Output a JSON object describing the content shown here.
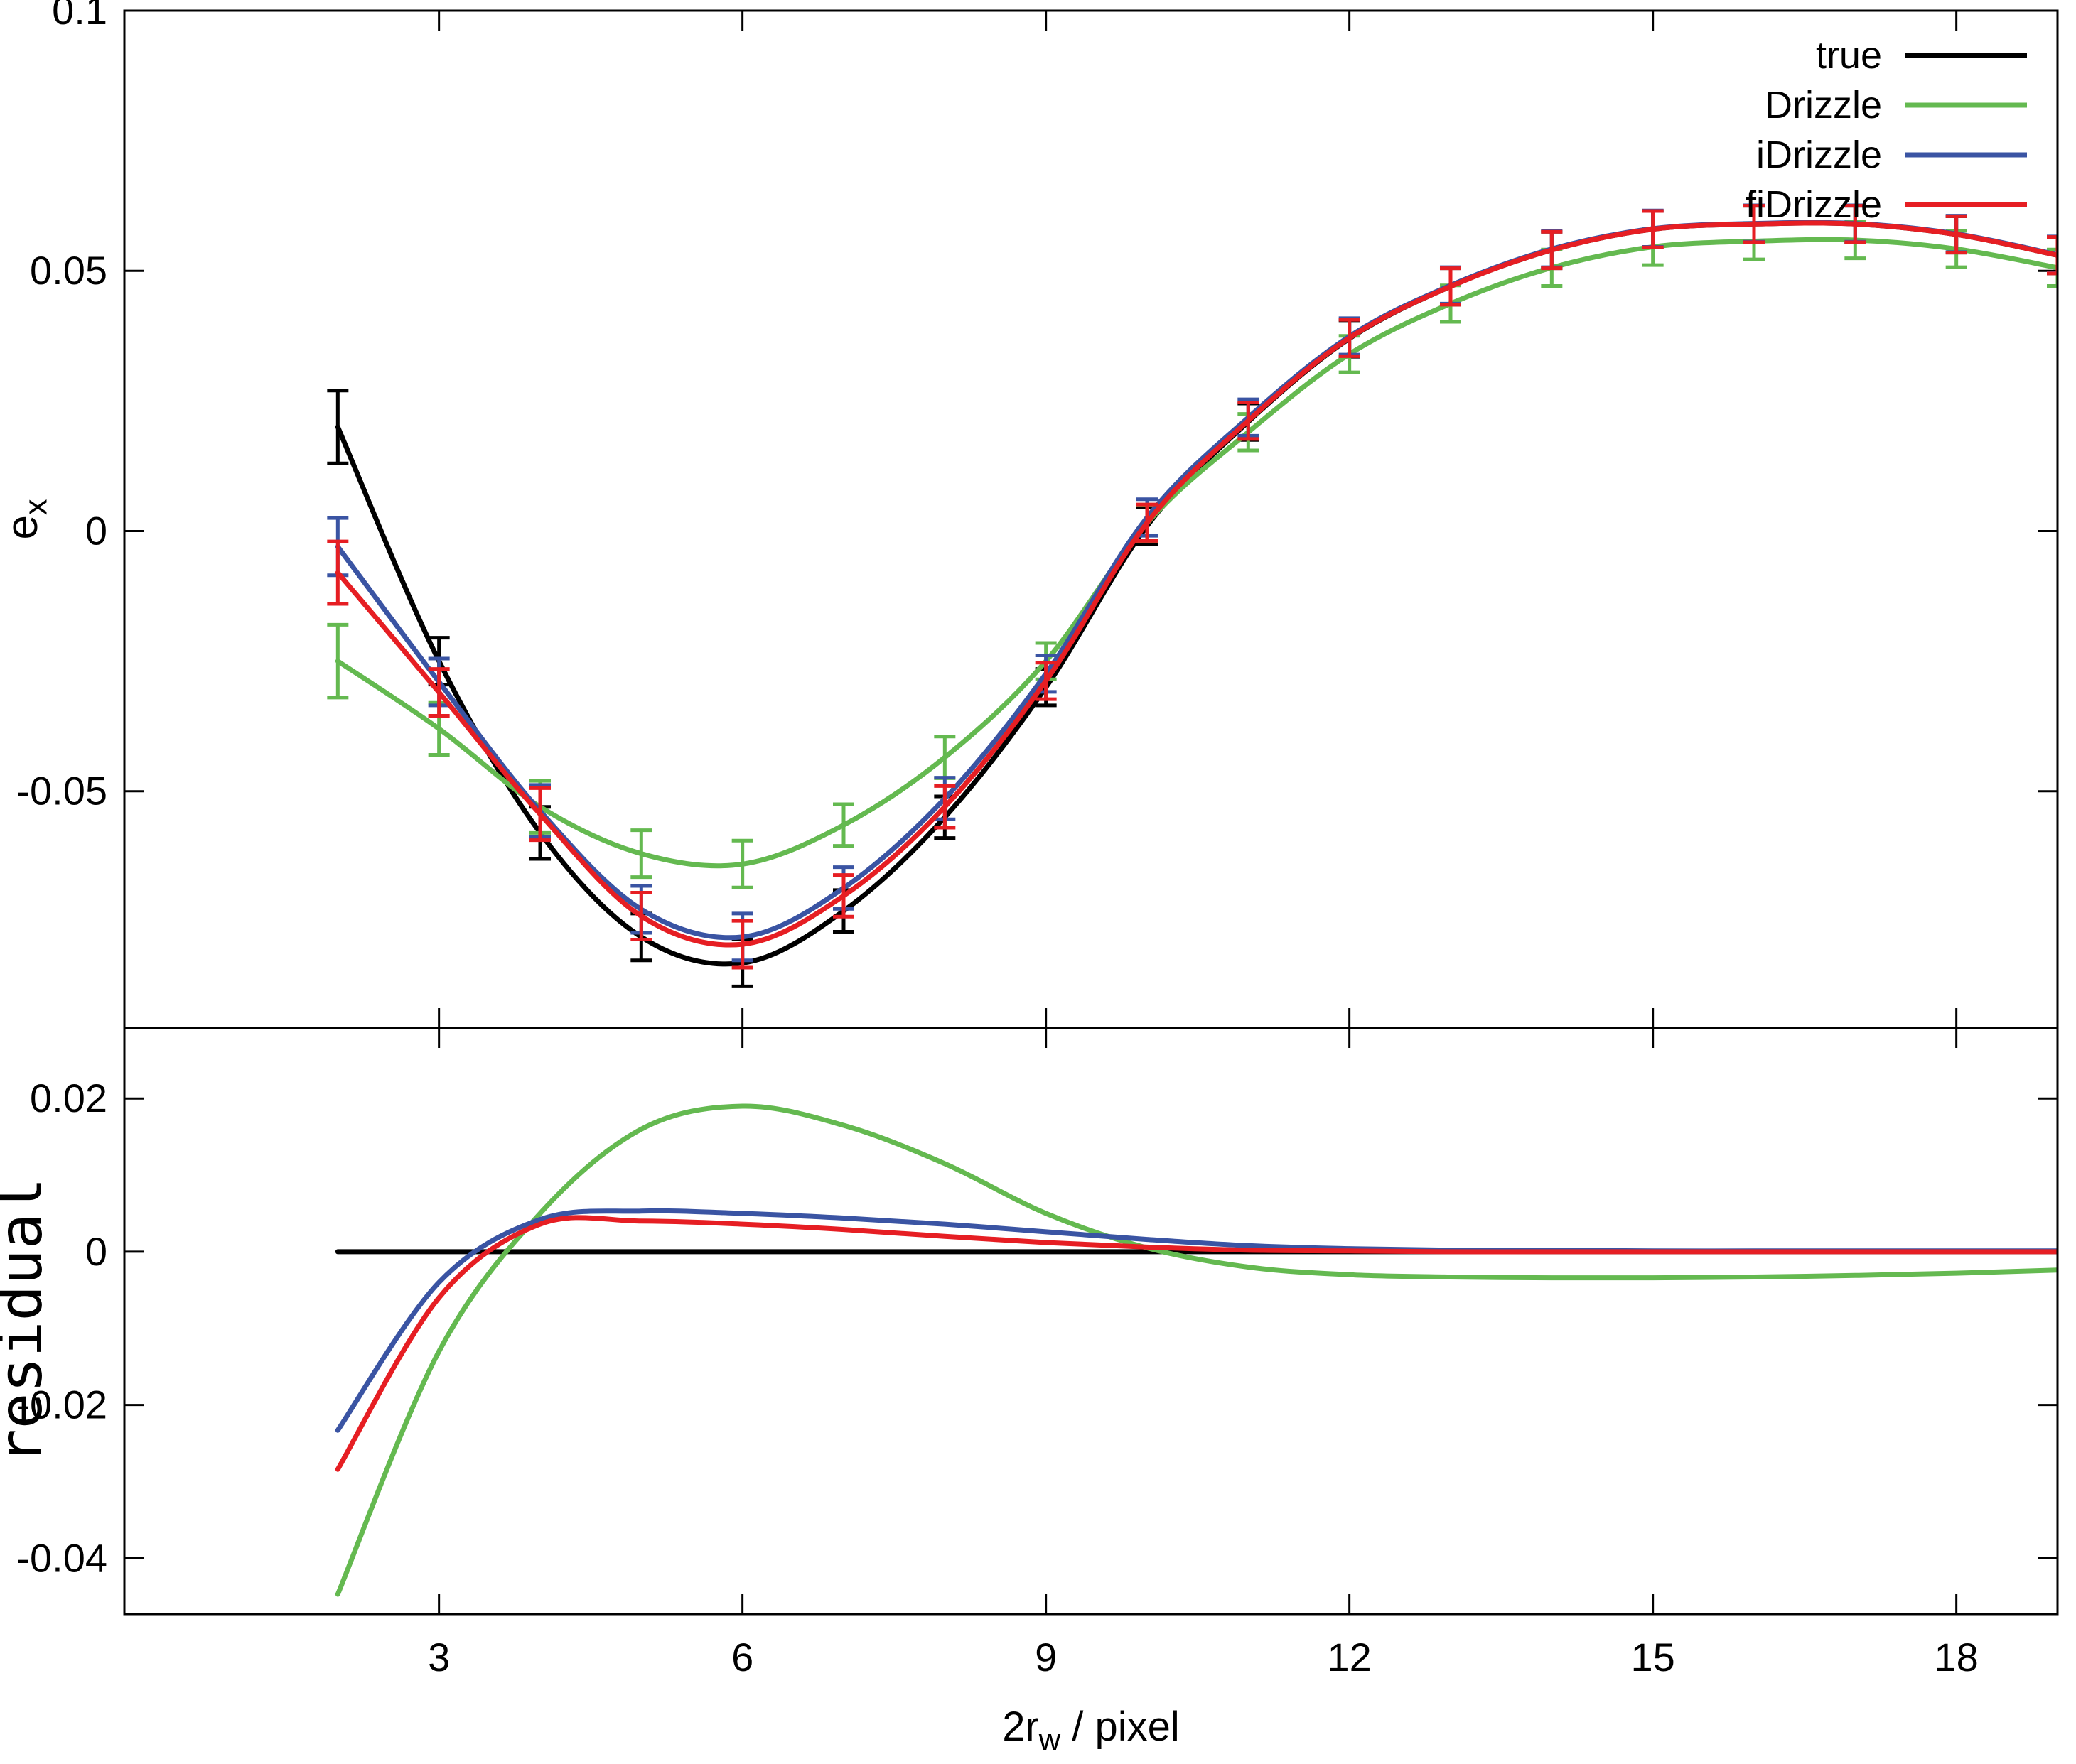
{
  "figure": {
    "background": "#ffffff"
  },
  "chart_data": [
    {
      "type": "line",
      "panel": "top",
      "title": "",
      "ylabel": "e_x",
      "xlim": [
        -0.11,
        19.0
      ],
      "ylim": [
        -0.0955,
        0.1
      ],
      "xticks": [
        3,
        6,
        9,
        12,
        15,
        18
      ],
      "yticks": [
        0.1,
        0.05,
        0,
        -0.05
      ],
      "x_tick_labels_visible": false,
      "grid": false,
      "legend_position": "top-right",
      "x": [
        2,
        3,
        4,
        5,
        6,
        7,
        8,
        9,
        10,
        11,
        12,
        13,
        14,
        15,
        16,
        17,
        18,
        19
      ],
      "series": [
        {
          "name": "true",
          "color": "#000000",
          "values": [
            0.02,
            -0.025,
            -0.058,
            -0.078,
            -0.083,
            -0.073,
            -0.055,
            -0.03,
            0.001,
            0.021,
            0.037,
            0.047,
            0.054,
            0.058,
            0.059,
            0.059,
            0.057,
            0.053
          ],
          "yerr": [
            0.007,
            0.0045,
            0.005,
            0.0045,
            0.0045,
            0.004,
            0.004,
            0.0035,
            0.0035,
            0.0035,
            0.0035,
            0.0035,
            0.0035,
            0.0035,
            0.0035,
            0.0035,
            0.0035,
            0.0035
          ]
        },
        {
          "name": "Drizzle",
          "color": "#64B950",
          "values": [
            -0.025,
            -0.038,
            -0.053,
            -0.062,
            -0.064,
            -0.0565,
            -0.0435,
            -0.025,
            0.0015,
            0.019,
            0.034,
            0.0437,
            0.0506,
            0.0546,
            0.0557,
            0.0559,
            0.0542,
            0.0506
          ],
          "yerr": [
            0.007,
            0.005,
            0.005,
            0.0045,
            0.0045,
            0.004,
            0.004,
            0.0035,
            0.0035,
            0.0035,
            0.0035,
            0.0035,
            0.0035,
            0.0035,
            0.0035,
            0.0035,
            0.0035,
            0.0035
          ]
        },
        {
          "name": "iDrizzle",
          "color": "#3A54A3",
          "values": [
            -0.003,
            -0.029,
            -0.0538,
            -0.0727,
            -0.078,
            -0.0686,
            -0.0514,
            -0.0274,
            0.0026,
            0.0218,
            0.0374,
            0.0472,
            0.0542,
            0.0581,
            0.0591,
            0.0591,
            0.0571,
            0.0531
          ],
          "yerr": [
            0.0055,
            0.0045,
            0.005,
            0.0045,
            0.0045,
            0.004,
            0.004,
            0.0035,
            0.0035,
            0.0035,
            0.0035,
            0.0035,
            0.0035,
            0.0035,
            0.0035,
            0.0035,
            0.0035,
            0.0035
          ]
        },
        {
          "name": "fiDrizzle",
          "color": "#E61E23",
          "values": [
            -0.008,
            -0.031,
            -0.0544,
            -0.074,
            -0.0794,
            -0.0701,
            -0.053,
            -0.0288,
            0.0016,
            0.0212,
            0.0371,
            0.047,
            0.054,
            0.058,
            0.059,
            0.059,
            0.057,
            0.053
          ],
          "yerr": [
            0.006,
            0.0045,
            0.005,
            0.0045,
            0.0045,
            0.004,
            0.004,
            0.0035,
            0.0035,
            0.0035,
            0.0035,
            0.0035,
            0.0035,
            0.0035,
            0.0035,
            0.0035,
            0.0035,
            0.0035
          ]
        }
      ]
    },
    {
      "type": "line",
      "panel": "bottom",
      "title": "",
      "ylabel": "residual",
      "xlabel": "2r_w / pixel",
      "xlim": [
        -0.11,
        19.0
      ],
      "ylim": [
        -0.0473,
        0.0292
      ],
      "xticks": [
        3,
        6,
        9,
        12,
        15,
        18
      ],
      "yticks": [
        0.02,
        0,
        -0.02,
        -0.04
      ],
      "x_tick_labels_visible": true,
      "grid": false,
      "legend_position": "none",
      "x": [
        2,
        3,
        4,
        5,
        6,
        7,
        8,
        9,
        10,
        11,
        12,
        13,
        14,
        15,
        16,
        17,
        18,
        19
      ],
      "series": [
        {
          "name": "true",
          "color": "#000000",
          "values": [
            0,
            0,
            0,
            0,
            0,
            0,
            0,
            0,
            0,
            0,
            0,
            0,
            0,
            0,
            0,
            0,
            0,
            0
          ]
        },
        {
          "name": "Drizzle",
          "color": "#64B950",
          "values": [
            -0.0447,
            -0.013,
            0.005,
            0.016,
            0.019,
            0.0165,
            0.0115,
            0.005,
            0.0005,
            -0.002,
            -0.003,
            -0.0033,
            -0.0034,
            -0.0034,
            -0.0033,
            -0.0031,
            -0.0028,
            -0.0024
          ]
        },
        {
          "name": "iDrizzle",
          "color": "#3A54A3",
          "values": [
            -0.0233,
            -0.004,
            0.0042,
            0.0053,
            0.005,
            0.0044,
            0.0036,
            0.0026,
            0.0016,
            0.0008,
            0.0004,
            0.0002,
            0.0002,
            0.0001,
            0.0001,
            0.0001,
            0.0001,
            0.0001
          ]
        },
        {
          "name": "fiDrizzle",
          "color": "#E61E23",
          "values": [
            -0.0284,
            -0.006,
            0.0036,
            0.004,
            0.0036,
            0.0029,
            0.002,
            0.0012,
            0.0006,
            0.0002,
            0.0001,
            0,
            0,
            0,
            0,
            0,
            0,
            0
          ]
        }
      ]
    }
  ]
}
